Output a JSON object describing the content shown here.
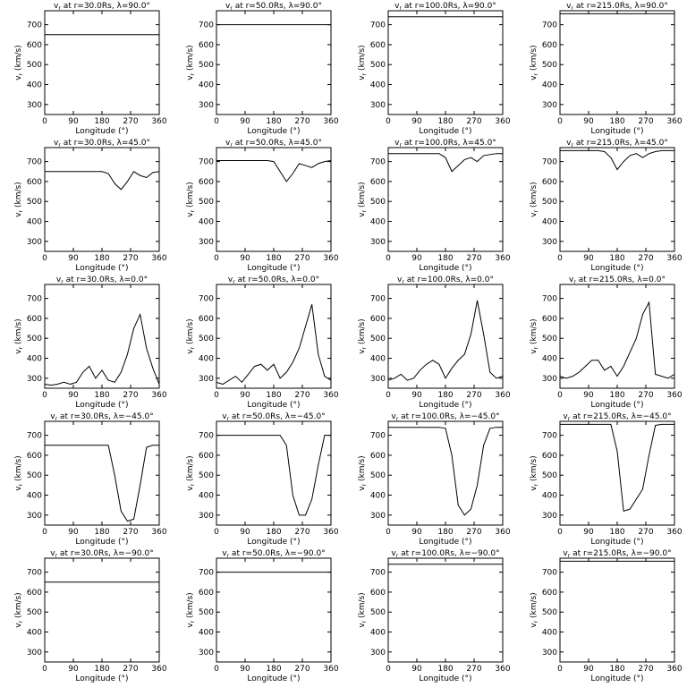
{
  "chart_data": [
    {
      "type": "line",
      "title": [
        "v",
        "r",
        " at r=30.0Rs, λ=90.0°"
      ],
      "xlabel": "Longitude (°)",
      "ylabel": [
        "v",
        "r",
        " (km/s)"
      ],
      "x": [
        0,
        360
      ],
      "values": [
        650,
        650
      ],
      "xlim": [
        0,
        360
      ],
      "ylim": [
        250,
        770
      ],
      "xticks": [
        0,
        90,
        180,
        270,
        360
      ],
      "yticks": [
        300,
        400,
        500,
        600,
        700
      ],
      "color": "#000000"
    },
    {
      "type": "line",
      "title": [
        "v",
        "r",
        " at r=50.0Rs, λ=90.0°"
      ],
      "xlabel": "Longitude (°)",
      "ylabel": [
        "v",
        "r",
        " (km/s)"
      ],
      "x": [
        0,
        360
      ],
      "values": [
        700,
        700
      ],
      "xlim": [
        0,
        360
      ],
      "ylim": [
        250,
        770
      ],
      "xticks": [
        0,
        90,
        180,
        270,
        360
      ],
      "yticks": [
        300,
        400,
        500,
        600,
        700
      ],
      "color": "#000000"
    },
    {
      "type": "line",
      "title": [
        "v",
        "r",
        " at r=100.0Rs, λ=90.0°"
      ],
      "xlabel": "Longitude (°)",
      "ylabel": [
        "v",
        "r",
        " (km/s)"
      ],
      "x": [
        0,
        360
      ],
      "values": [
        740,
        740
      ],
      "xlim": [
        0,
        360
      ],
      "ylim": [
        250,
        770
      ],
      "xticks": [
        0,
        90,
        180,
        270,
        360
      ],
      "yticks": [
        300,
        400,
        500,
        600,
        700
      ],
      "color": "#000000"
    },
    {
      "type": "line",
      "title": [
        "v",
        "r",
        " at r=215.0Rs, λ=90.0°"
      ],
      "xlabel": "Longitude (°)",
      "ylabel": [
        "v",
        "r",
        " (km/s)"
      ],
      "x": [
        0,
        360
      ],
      "values": [
        755,
        755
      ],
      "xlim": [
        0,
        360
      ],
      "ylim": [
        250,
        770
      ],
      "xticks": [
        0,
        90,
        180,
        270,
        360
      ],
      "yticks": [
        300,
        400,
        500,
        600,
        700
      ],
      "color": "#000000"
    },
    {
      "type": "line",
      "title": [
        "v",
        "r",
        " at r=30.0Rs, λ=45.0°"
      ],
      "xlabel": "Longitude (°)",
      "ylabel": [
        "v",
        "r",
        " (km/s)"
      ],
      "x": [
        0,
        20,
        40,
        60,
        80,
        100,
        120,
        140,
        160,
        180,
        200,
        220,
        240,
        260,
        280,
        300,
        320,
        340,
        360
      ],
      "values": [
        650,
        650,
        650,
        650,
        650,
        650,
        650,
        650,
        650,
        650,
        640,
        590,
        560,
        600,
        650,
        630,
        620,
        645,
        650
      ],
      "xlim": [
        0,
        360
      ],
      "ylim": [
        250,
        770
      ],
      "xticks": [
        0,
        90,
        180,
        270,
        360
      ],
      "yticks": [
        300,
        400,
        500,
        600,
        700
      ],
      "color": "#000000"
    },
    {
      "type": "line",
      "title": [
        "v",
        "r",
        " at r=50.0Rs, λ=45.0°"
      ],
      "xlabel": "Longitude (°)",
      "ylabel": [
        "v",
        "r",
        " (km/s)"
      ],
      "x": [
        0,
        20,
        40,
        60,
        80,
        100,
        120,
        140,
        160,
        180,
        200,
        220,
        240,
        260,
        280,
        300,
        320,
        340,
        360
      ],
      "values": [
        705,
        705,
        705,
        705,
        705,
        705,
        705,
        705,
        705,
        700,
        650,
        600,
        640,
        690,
        680,
        670,
        690,
        700,
        705
      ],
      "xlim": [
        0,
        360
      ],
      "ylim": [
        250,
        770
      ],
      "xticks": [
        0,
        90,
        180,
        270,
        360
      ],
      "yticks": [
        300,
        400,
        500,
        600,
        700
      ],
      "color": "#000000"
    },
    {
      "type": "line",
      "title": [
        "v",
        "r",
        " at r=100.0Rs, λ=45.0°"
      ],
      "xlabel": "Longitude (°)",
      "ylabel": [
        "v",
        "r",
        " (km/s)"
      ],
      "x": [
        0,
        20,
        40,
        60,
        80,
        100,
        120,
        140,
        160,
        180,
        200,
        220,
        240,
        260,
        280,
        300,
        320,
        340,
        360
      ],
      "values": [
        740,
        740,
        740,
        740,
        740,
        740,
        740,
        740,
        740,
        720,
        650,
        680,
        710,
        720,
        700,
        730,
        735,
        740,
        740
      ],
      "xlim": [
        0,
        360
      ],
      "ylim": [
        250,
        770
      ],
      "xticks": [
        0,
        90,
        180,
        270,
        360
      ],
      "yticks": [
        300,
        400,
        500,
        600,
        700
      ],
      "color": "#000000"
    },
    {
      "type": "line",
      "title": [
        "v",
        "r",
        " at r=215.0Rs, λ=45.0°"
      ],
      "xlabel": "Longitude (°)",
      "ylabel": [
        "v",
        "r",
        " (km/s)"
      ],
      "x": [
        0,
        20,
        40,
        60,
        80,
        100,
        120,
        140,
        160,
        180,
        200,
        220,
        240,
        260,
        280,
        300,
        320,
        340,
        360
      ],
      "values": [
        755,
        755,
        755,
        755,
        755,
        755,
        755,
        750,
        720,
        660,
        700,
        730,
        740,
        720,
        740,
        750,
        755,
        755,
        755
      ],
      "xlim": [
        0,
        360
      ],
      "ylim": [
        250,
        770
      ],
      "xticks": [
        0,
        90,
        180,
        270,
        360
      ],
      "yticks": [
        300,
        400,
        500,
        600,
        700
      ],
      "color": "#000000"
    },
    {
      "type": "line",
      "title": [
        "v",
        "r",
        " at r=30.0Rs, λ=0.0°"
      ],
      "xlabel": "Longitude (°)",
      "ylabel": [
        "v",
        "r",
        " (km/s)"
      ],
      "x": [
        0,
        20,
        40,
        60,
        80,
        100,
        120,
        140,
        160,
        180,
        200,
        220,
        240,
        260,
        280,
        300,
        320,
        340,
        360
      ],
      "values": [
        270,
        265,
        270,
        280,
        270,
        280,
        330,
        360,
        300,
        340,
        290,
        280,
        330,
        420,
        550,
        620,
        450,
        350,
        270
      ],
      "xlim": [
        0,
        360
      ],
      "ylim": [
        250,
        770
      ],
      "xticks": [
        0,
        90,
        180,
        270,
        360
      ],
      "yticks": [
        300,
        400,
        500,
        600,
        700
      ],
      "color": "#000000"
    },
    {
      "type": "line",
      "title": [
        "v",
        "r",
        " at r=50.0Rs, λ=0.0°"
      ],
      "xlabel": "Longitude (°)",
      "ylabel": [
        "v",
        "r",
        " (km/s)"
      ],
      "x": [
        0,
        20,
        40,
        60,
        80,
        100,
        120,
        140,
        160,
        180,
        200,
        220,
        240,
        260,
        280,
        300,
        320,
        340,
        360
      ],
      "values": [
        280,
        270,
        290,
        310,
        280,
        320,
        360,
        370,
        340,
        370,
        300,
        330,
        380,
        450,
        560,
        670,
        420,
        310,
        290
      ],
      "xlim": [
        0,
        360
      ],
      "ylim": [
        250,
        770
      ],
      "xticks": [
        0,
        90,
        180,
        270,
        360
      ],
      "yticks": [
        300,
        400,
        500,
        600,
        700
      ],
      "color": "#000000"
    },
    {
      "type": "line",
      "title": [
        "v",
        "r",
        " at r=100.0Rs, λ=0.0°"
      ],
      "xlabel": "Longitude (°)",
      "ylabel": [
        "v",
        "r",
        " (km/s)"
      ],
      "x": [
        0,
        20,
        40,
        60,
        80,
        100,
        120,
        140,
        160,
        180,
        200,
        220,
        240,
        260,
        280,
        300,
        320,
        340,
        360
      ],
      "values": [
        290,
        300,
        320,
        290,
        300,
        340,
        370,
        390,
        370,
        300,
        350,
        390,
        420,
        520,
        690,
        520,
        330,
        300,
        310
      ],
      "xlim": [
        0,
        360
      ],
      "ylim": [
        250,
        770
      ],
      "xticks": [
        0,
        90,
        180,
        270,
        360
      ],
      "yticks": [
        300,
        400,
        500,
        600,
        700
      ],
      "color": "#000000"
    },
    {
      "type": "line",
      "title": [
        "v",
        "r",
        " at r=215.0Rs, λ=0.0°"
      ],
      "xlabel": "Longitude (°)",
      "ylabel": [
        "v",
        "r",
        " (km/s)"
      ],
      "x": [
        0,
        20,
        40,
        60,
        80,
        100,
        120,
        140,
        160,
        180,
        200,
        220,
        240,
        260,
        280,
        300,
        320,
        340,
        360
      ],
      "values": [
        310,
        300,
        310,
        330,
        360,
        390,
        390,
        340,
        360,
        310,
        360,
        430,
        500,
        620,
        680,
        320,
        310,
        300,
        320
      ],
      "xlim": [
        0,
        360
      ],
      "ylim": [
        250,
        770
      ],
      "xticks": [
        0,
        90,
        180,
        270,
        360
      ],
      "yticks": [
        300,
        400,
        500,
        600,
        700
      ],
      "color": "#000000"
    },
    {
      "type": "line",
      "title": [
        "v",
        "r",
        " at r=30.0Rs, λ=−45.0°"
      ],
      "xlabel": "Longitude (°)",
      "ylabel": [
        "v",
        "r",
        " (km/s)"
      ],
      "x": [
        0,
        20,
        40,
        60,
        80,
        100,
        120,
        140,
        160,
        180,
        200,
        220,
        240,
        260,
        280,
        300,
        320,
        340,
        360
      ],
      "values": [
        650,
        650,
        650,
        650,
        650,
        650,
        650,
        650,
        650,
        650,
        650,
        500,
        320,
        270,
        280,
        450,
        640,
        650,
        650
      ],
      "xlim": [
        0,
        360
      ],
      "ylim": [
        250,
        770
      ],
      "xticks": [
        0,
        90,
        180,
        270,
        360
      ],
      "yticks": [
        300,
        400,
        500,
        600,
        700
      ],
      "color": "#000000"
    },
    {
      "type": "line",
      "title": [
        "v",
        "r",
        " at r=50.0Rs, λ=−45.0°"
      ],
      "xlabel": "Longitude (°)",
      "ylabel": [
        "v",
        "r",
        " (km/s)"
      ],
      "x": [
        0,
        20,
        40,
        60,
        80,
        100,
        120,
        140,
        160,
        180,
        200,
        220,
        240,
        260,
        280,
        300,
        320,
        340,
        360
      ],
      "values": [
        700,
        700,
        700,
        700,
        700,
        700,
        700,
        700,
        700,
        700,
        700,
        650,
        400,
        300,
        300,
        380,
        550,
        700,
        700
      ],
      "xlim": [
        0,
        360
      ],
      "ylim": [
        250,
        770
      ],
      "xticks": [
        0,
        90,
        180,
        270,
        360
      ],
      "yticks": [
        300,
        400,
        500,
        600,
        700
      ],
      "color": "#000000"
    },
    {
      "type": "line",
      "title": [
        "v",
        "r",
        " at r=100.0Rs, λ=−45.0°"
      ],
      "xlabel": "Longitude (°)",
      "ylabel": [
        "v",
        "r",
        " (km/s)"
      ],
      "x": [
        0,
        20,
        40,
        60,
        80,
        100,
        120,
        140,
        160,
        180,
        200,
        220,
        240,
        260,
        280,
        300,
        320,
        340,
        360
      ],
      "values": [
        740,
        740,
        740,
        740,
        740,
        740,
        740,
        740,
        740,
        735,
        600,
        350,
        300,
        330,
        450,
        650,
        735,
        740,
        740
      ],
      "xlim": [
        0,
        360
      ],
      "ylim": [
        250,
        770
      ],
      "xticks": [
        0,
        90,
        180,
        270,
        360
      ],
      "yticks": [
        300,
        400,
        500,
        600,
        700
      ],
      "color": "#000000"
    },
    {
      "type": "line",
      "title": [
        "v",
        "r",
        " at r=215.0Rs, λ=−45.0°"
      ],
      "xlabel": "Longitude (°)",
      "ylabel": [
        "v",
        "r",
        " (km/s)"
      ],
      "x": [
        0,
        20,
        40,
        60,
        80,
        100,
        120,
        140,
        160,
        180,
        200,
        220,
        240,
        260,
        280,
        300,
        320,
        340,
        360
      ],
      "values": [
        755,
        755,
        755,
        755,
        755,
        755,
        755,
        755,
        755,
        620,
        320,
        330,
        380,
        430,
        600,
        750,
        755,
        755,
        755
      ],
      "xlim": [
        0,
        360
      ],
      "ylim": [
        250,
        770
      ],
      "xticks": [
        0,
        90,
        180,
        270,
        360
      ],
      "yticks": [
        300,
        400,
        500,
        600,
        700
      ],
      "color": "#000000"
    },
    {
      "type": "line",
      "title": [
        "v",
        "r",
        " at r=30.0Rs, λ=−90.0°"
      ],
      "xlabel": "Longitude (°)",
      "ylabel": [
        "v",
        "r",
        " (km/s)"
      ],
      "x": [
        0,
        360
      ],
      "values": [
        650,
        650
      ],
      "xlim": [
        0,
        360
      ],
      "ylim": [
        250,
        770
      ],
      "xticks": [
        0,
        90,
        180,
        270,
        360
      ],
      "yticks": [
        300,
        400,
        500,
        600,
        700
      ],
      "color": "#000000"
    },
    {
      "type": "line",
      "title": [
        "v",
        "r",
        " at r=50.0Rs, λ=−90.0°"
      ],
      "xlabel": "Longitude (°)",
      "ylabel": [
        "v",
        "r",
        " (km/s)"
      ],
      "x": [
        0,
        360
      ],
      "values": [
        700,
        700
      ],
      "xlim": [
        0,
        360
      ],
      "ylim": [
        250,
        770
      ],
      "xticks": [
        0,
        90,
        180,
        270,
        360
      ],
      "yticks": [
        300,
        400,
        500,
        600,
        700
      ],
      "color": "#000000"
    },
    {
      "type": "line",
      "title": [
        "v",
        "r",
        " at r=100.0Rs, λ=−90.0°"
      ],
      "xlabel": "Longitude (°)",
      "ylabel": [
        "v",
        "r",
        " (km/s)"
      ],
      "x": [
        0,
        360
      ],
      "values": [
        740,
        740
      ],
      "xlim": [
        0,
        360
      ],
      "ylim": [
        250,
        770
      ],
      "xticks": [
        0,
        90,
        180,
        270,
        360
      ],
      "yticks": [
        300,
        400,
        500,
        600,
        700
      ],
      "color": "#000000"
    },
    {
      "type": "line",
      "title": [
        "v",
        "r",
        " at r=215.0Rs, λ=−90.0°"
      ],
      "xlabel": "Longitude (°)",
      "ylabel": [
        "v",
        "r",
        " (km/s)"
      ],
      "x": [
        0,
        360
      ],
      "values": [
        755,
        755
      ],
      "xlim": [
        0,
        360
      ],
      "ylim": [
        250,
        770
      ],
      "xticks": [
        0,
        90,
        180,
        270,
        360
      ],
      "yticks": [
        300,
        400,
        500,
        600,
        700
      ],
      "color": "#000000"
    }
  ]
}
